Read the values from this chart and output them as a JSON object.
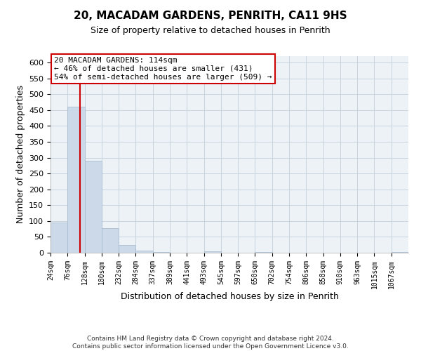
{
  "title": "20, MACADAM GARDENS, PENRITH, CA11 9HS",
  "subtitle": "Size of property relative to detached houses in Penrith",
  "xlabel": "Distribution of detached houses by size in Penrith",
  "ylabel": "Number of detached properties",
  "bar_labels": [
    "24sqm",
    "76sqm",
    "128sqm",
    "180sqm",
    "232sqm",
    "284sqm",
    "337sqm",
    "389sqm",
    "441sqm",
    "493sqm",
    "545sqm",
    "597sqm",
    "650sqm",
    "702sqm",
    "754sqm",
    "806sqm",
    "858sqm",
    "910sqm",
    "963sqm",
    "1015sqm",
    "1067sqm"
  ],
  "bar_values": [
    95,
    460,
    290,
    78,
    25,
    7,
    2,
    0,
    0,
    4,
    0,
    0,
    2,
    0,
    0,
    0,
    0,
    0,
    0,
    0,
    2
  ],
  "bar_color": "#ccd9e8",
  "bar_edge_color": "#aabdd0",
  "ylim": [
    0,
    620
  ],
  "yticks": [
    0,
    50,
    100,
    150,
    200,
    250,
    300,
    350,
    400,
    450,
    500,
    550,
    600
  ],
  "property_label": "20 MACADAM GARDENS: 114sqm",
  "annotation_line1": "← 46% of detached houses are smaller (431)",
  "annotation_line2": "54% of semi-detached houses are larger (509) →",
  "red_line_x": 114,
  "annotation_box_color": "#ffffff",
  "annotation_box_edge": "#cc0000",
  "red_line_color": "#cc0000",
  "grid_color": "#c8d4de",
  "bg_color": "#edf2f7",
  "footer_line1": "Contains HM Land Registry data © Crown copyright and database right 2024.",
  "footer_line2": "Contains public sector information licensed under the Open Government Licence v3.0."
}
